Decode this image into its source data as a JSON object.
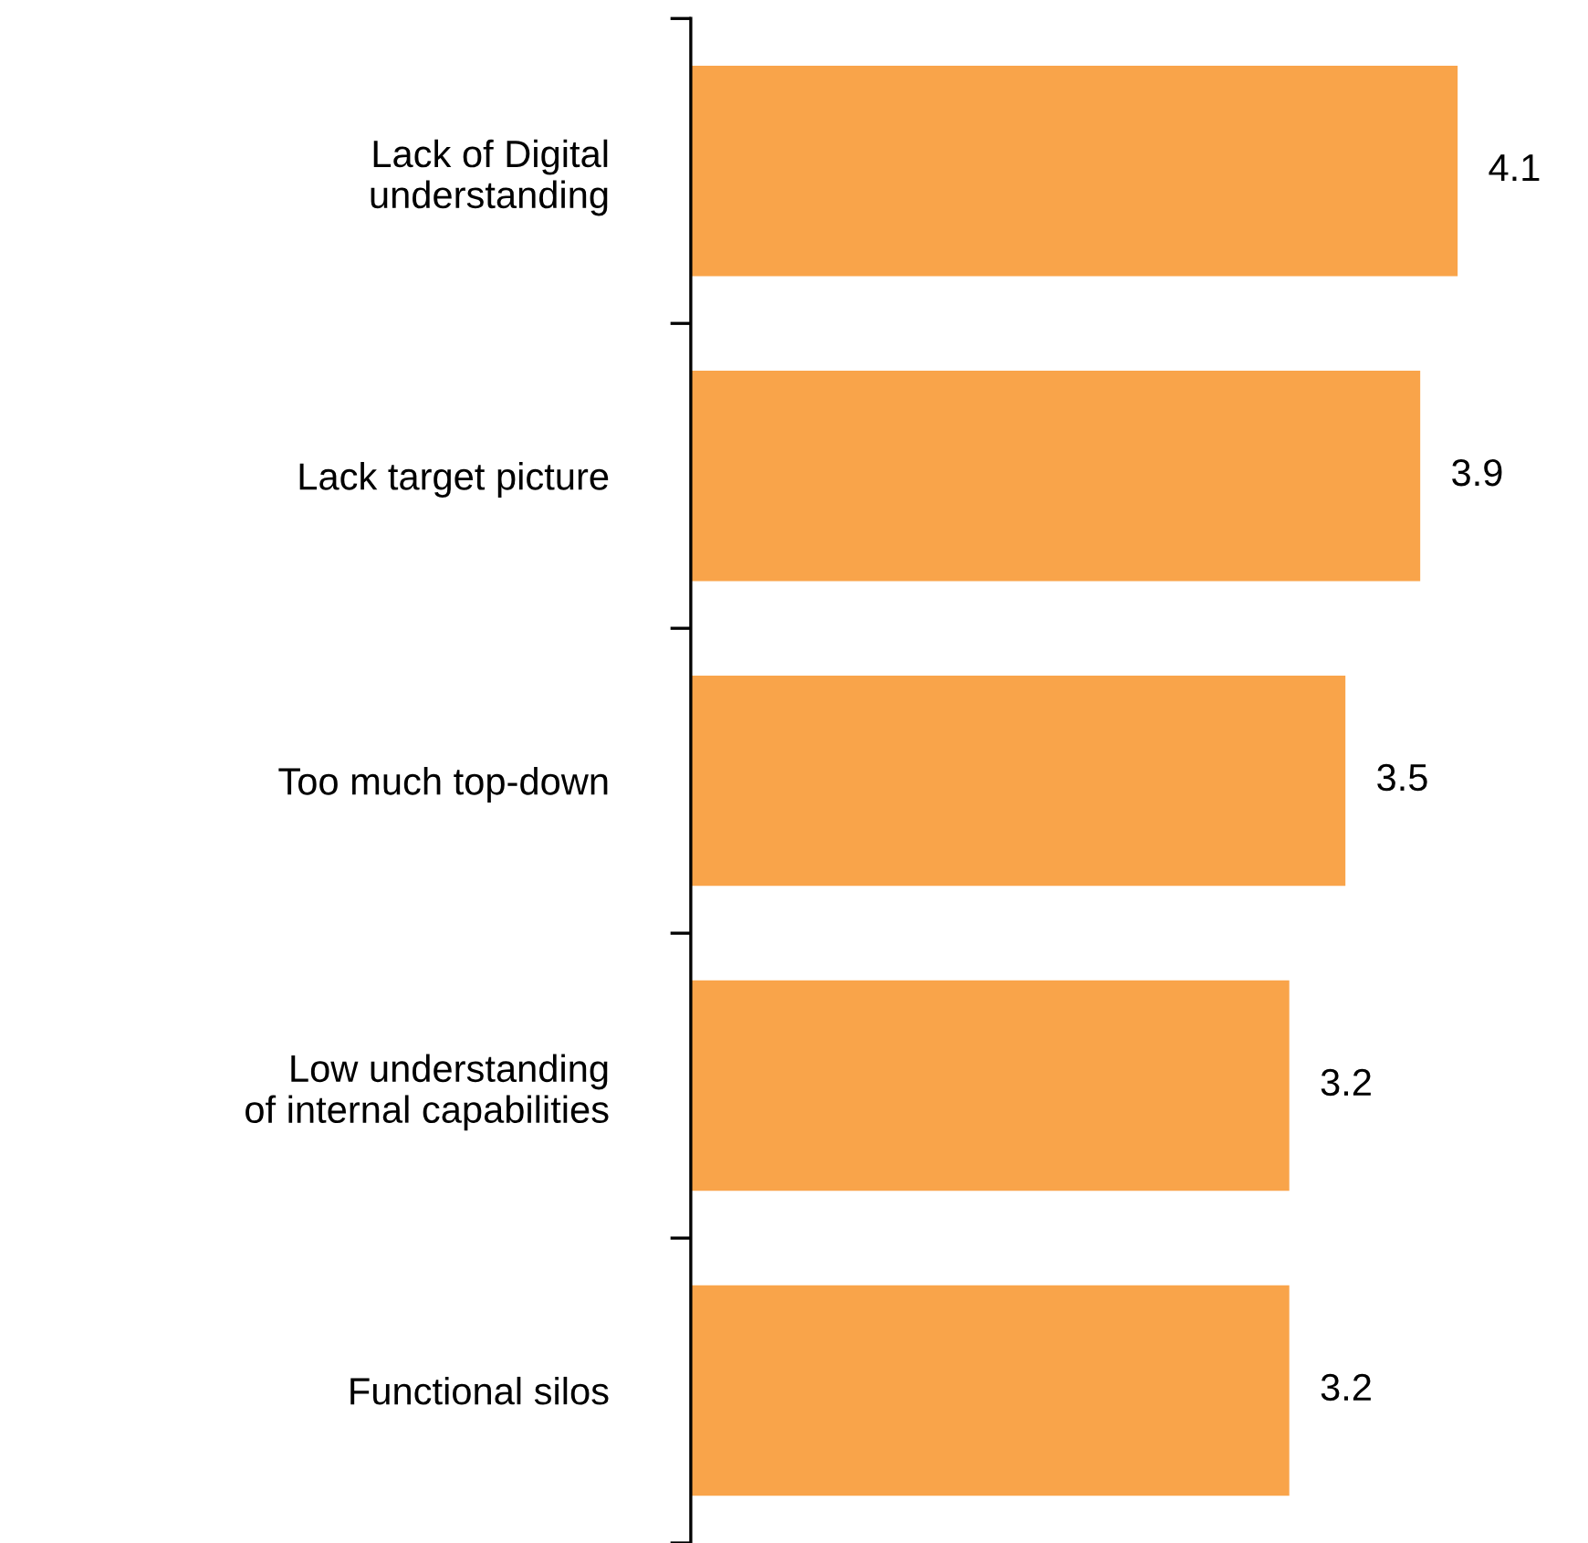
{
  "chart_data": {
    "type": "bar",
    "orientation": "horizontal",
    "categories": [
      "Lack of Digital\nunderstanding",
      "Lack target picture",
      "Too much top-down",
      "Low understanding\nof internal capabilities",
      "Functional silos"
    ],
    "values": [
      4.1,
      3.9,
      3.5,
      3.2,
      3.2
    ],
    "color": "#f9a44a",
    "data_labels": true,
    "grid": false,
    "legend": false,
    "tick_labels": "y"
  }
}
